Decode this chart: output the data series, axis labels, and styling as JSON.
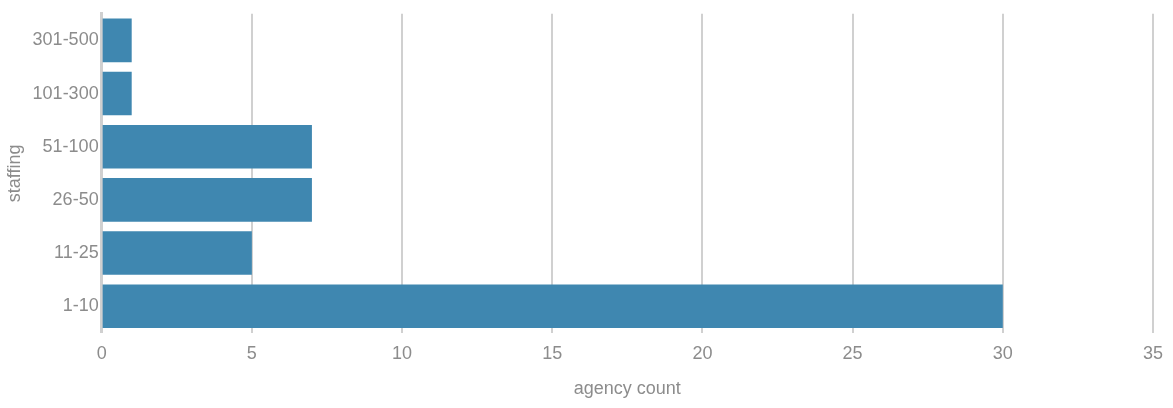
{
  "chart_data": {
    "type": "bar",
    "orientation": "horizontal",
    "xlabel": "agency count",
    "ylabel": "staffing",
    "categories": [
      "301-500",
      "101-300",
      "51-100",
      "26-50",
      "11-25",
      "1-10"
    ],
    "values": [
      1,
      1,
      7,
      7,
      5,
      30
    ],
    "color": "#3f87b0",
    "xlim": [
      0,
      35
    ],
    "xticks": [
      0,
      5,
      10,
      15,
      20,
      25,
      30,
      35
    ],
    "grid": "x"
  }
}
